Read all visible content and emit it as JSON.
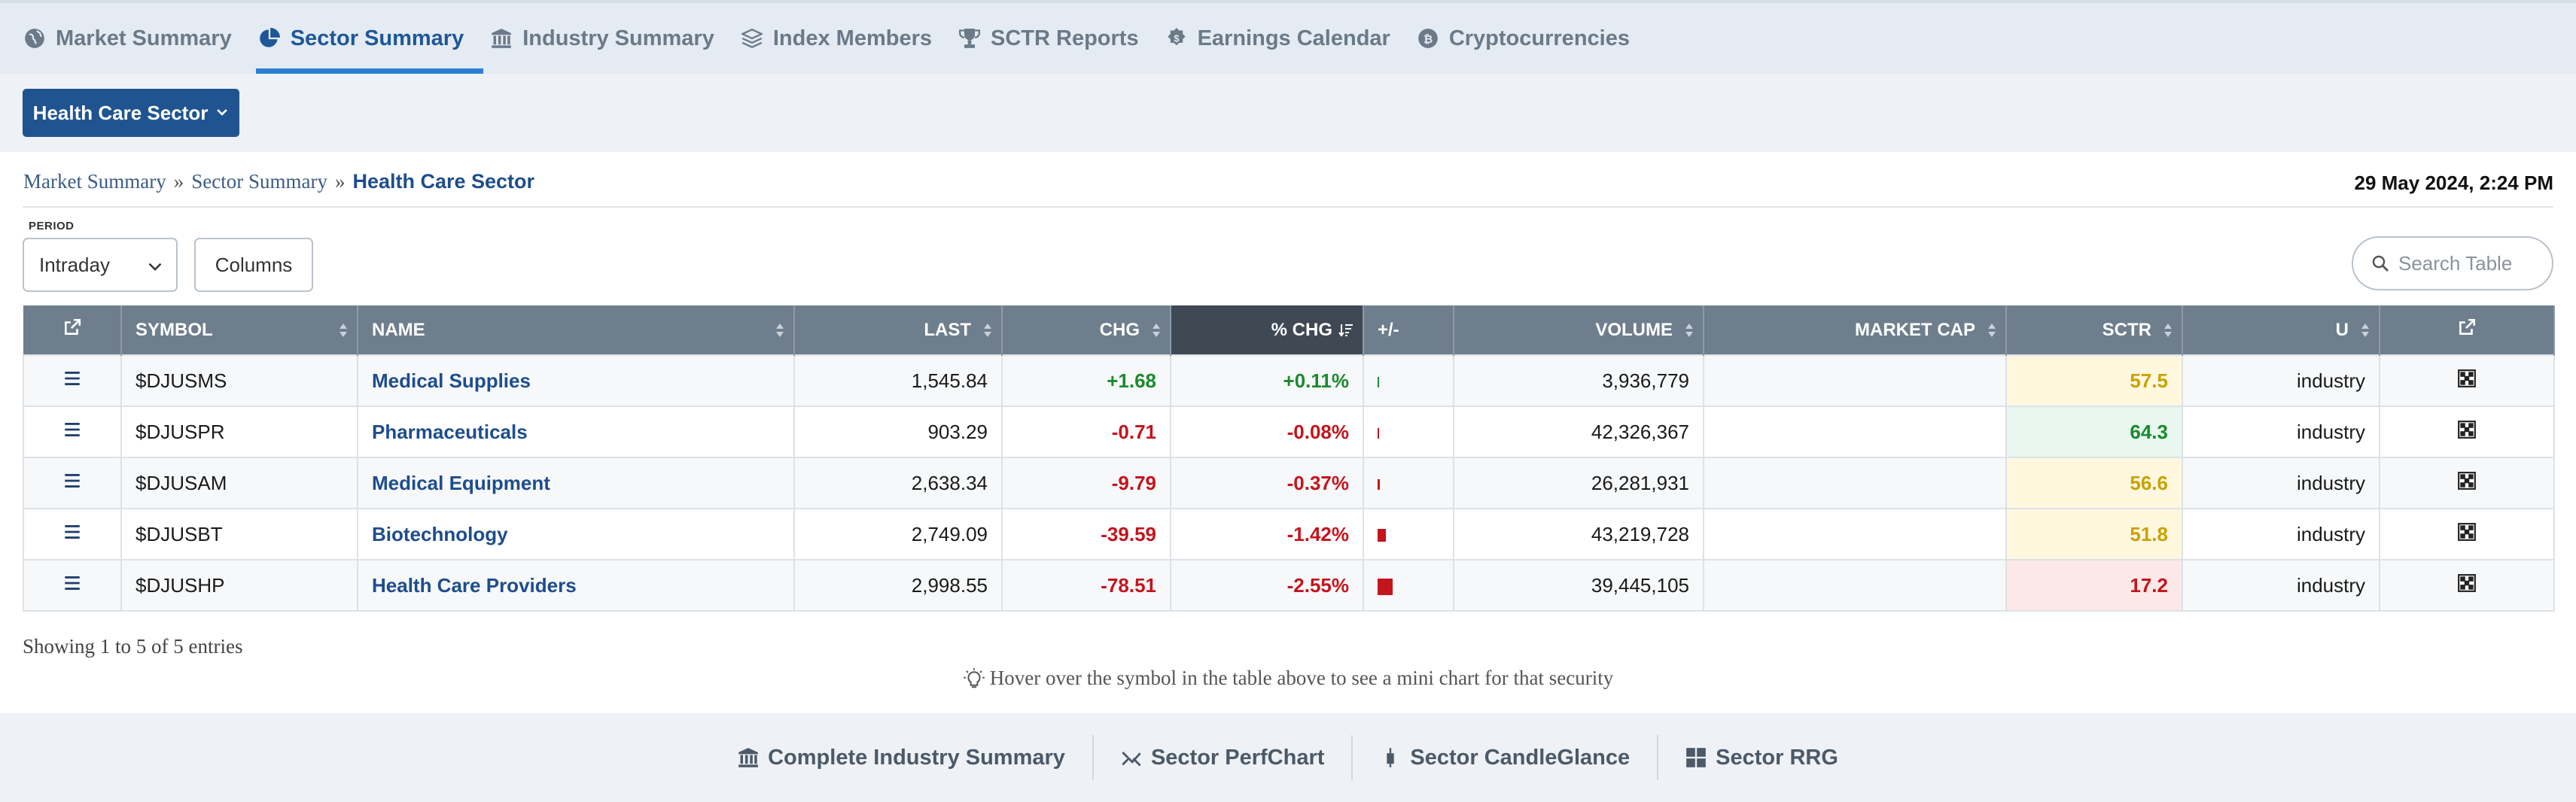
{
  "tabs": [
    {
      "label": "Market Summary",
      "icon": "globe-icon"
    },
    {
      "label": "Sector Summary",
      "icon": "pie-chart-icon",
      "active": true
    },
    {
      "label": "Industry Summary",
      "icon": "bank-icon"
    },
    {
      "label": "Index Members",
      "icon": "layers-icon"
    },
    {
      "label": "SCTR Reports",
      "icon": "trophy-icon"
    },
    {
      "label": "Earnings Calendar",
      "icon": "dollar-coin-icon"
    },
    {
      "label": "Cryptocurrencies",
      "icon": "bitcoin-icon"
    }
  ],
  "sector_button": "Health Care Sector",
  "breadcrumb": {
    "items": [
      "Market Summary",
      "Sector Summary"
    ],
    "separator": "»",
    "current": "Health Care Sector"
  },
  "timestamp": "29 May 2024, 2:24 PM",
  "period": {
    "label": "PERIOD",
    "value": "Intraday"
  },
  "columns_button": "Columns",
  "search": {
    "placeholder": "Search Table"
  },
  "table": {
    "headers": {
      "symbol": "SYMBOL",
      "name": "NAME",
      "last": "LAST",
      "chg": "CHG",
      "pct_chg": "% CHG",
      "plus_minus": "+/-",
      "volume": "VOLUME",
      "market_cap": "MARKET CAP",
      "sctr": "SCTR",
      "u": "U"
    },
    "rows": [
      {
        "symbol": "$DJUSMS",
        "name": "Medical Supplies",
        "last": "1,545.84",
        "chg": "+1.68",
        "pct_chg": "+0.11%",
        "pct_value": 0.11,
        "volume": "3,936,779",
        "market_cap": "",
        "sctr": "57.5",
        "u": "industry"
      },
      {
        "symbol": "$DJUSPR",
        "name": "Pharmaceuticals",
        "last": "903.29",
        "chg": "-0.71",
        "pct_chg": "-0.08%",
        "pct_value": -0.08,
        "volume": "42,326,367",
        "market_cap": "",
        "sctr": "64.3",
        "u": "industry"
      },
      {
        "symbol": "$DJUSAM",
        "name": "Medical Equipment",
        "last": "2,638.34",
        "chg": "-9.79",
        "pct_chg": "-0.37%",
        "pct_value": -0.37,
        "volume": "26,281,931",
        "market_cap": "",
        "sctr": "56.6",
        "u": "industry"
      },
      {
        "symbol": "$DJUSBT",
        "name": "Biotechnology",
        "last": "2,749.09",
        "chg": "-39.59",
        "pct_chg": "-1.42%",
        "pct_value": -1.42,
        "volume": "43,219,728",
        "market_cap": "",
        "sctr": "51.8",
        "u": "industry"
      },
      {
        "symbol": "$DJUSHP",
        "name": "Health Care Providers",
        "last": "2,998.55",
        "chg": "-78.51",
        "pct_chg": "-2.55%",
        "pct_value": -2.55,
        "volume": "39,445,105",
        "market_cap": "",
        "sctr": "17.2",
        "u": "industry"
      }
    ]
  },
  "entries_text": "Showing 1 to 5 of 5 entries",
  "hint_text": "Hover over the symbol in the table above to see a mini chart for that security",
  "bottom_links": [
    {
      "label": "Complete Industry Summary",
      "icon": "bank-icon"
    },
    {
      "label": "Sector PerfChart",
      "icon": "perfchart-icon"
    },
    {
      "label": "Sector CandleGlance",
      "icon": "candle-icon"
    },
    {
      "label": "Sector RRG",
      "icon": "grid-icon"
    }
  ],
  "colors": {
    "accent": "#1f5490",
    "tab_active": "#1e5799",
    "positive": "#1a8a2e",
    "negative": "#c4141c",
    "header": "#6f7e8d"
  }
}
